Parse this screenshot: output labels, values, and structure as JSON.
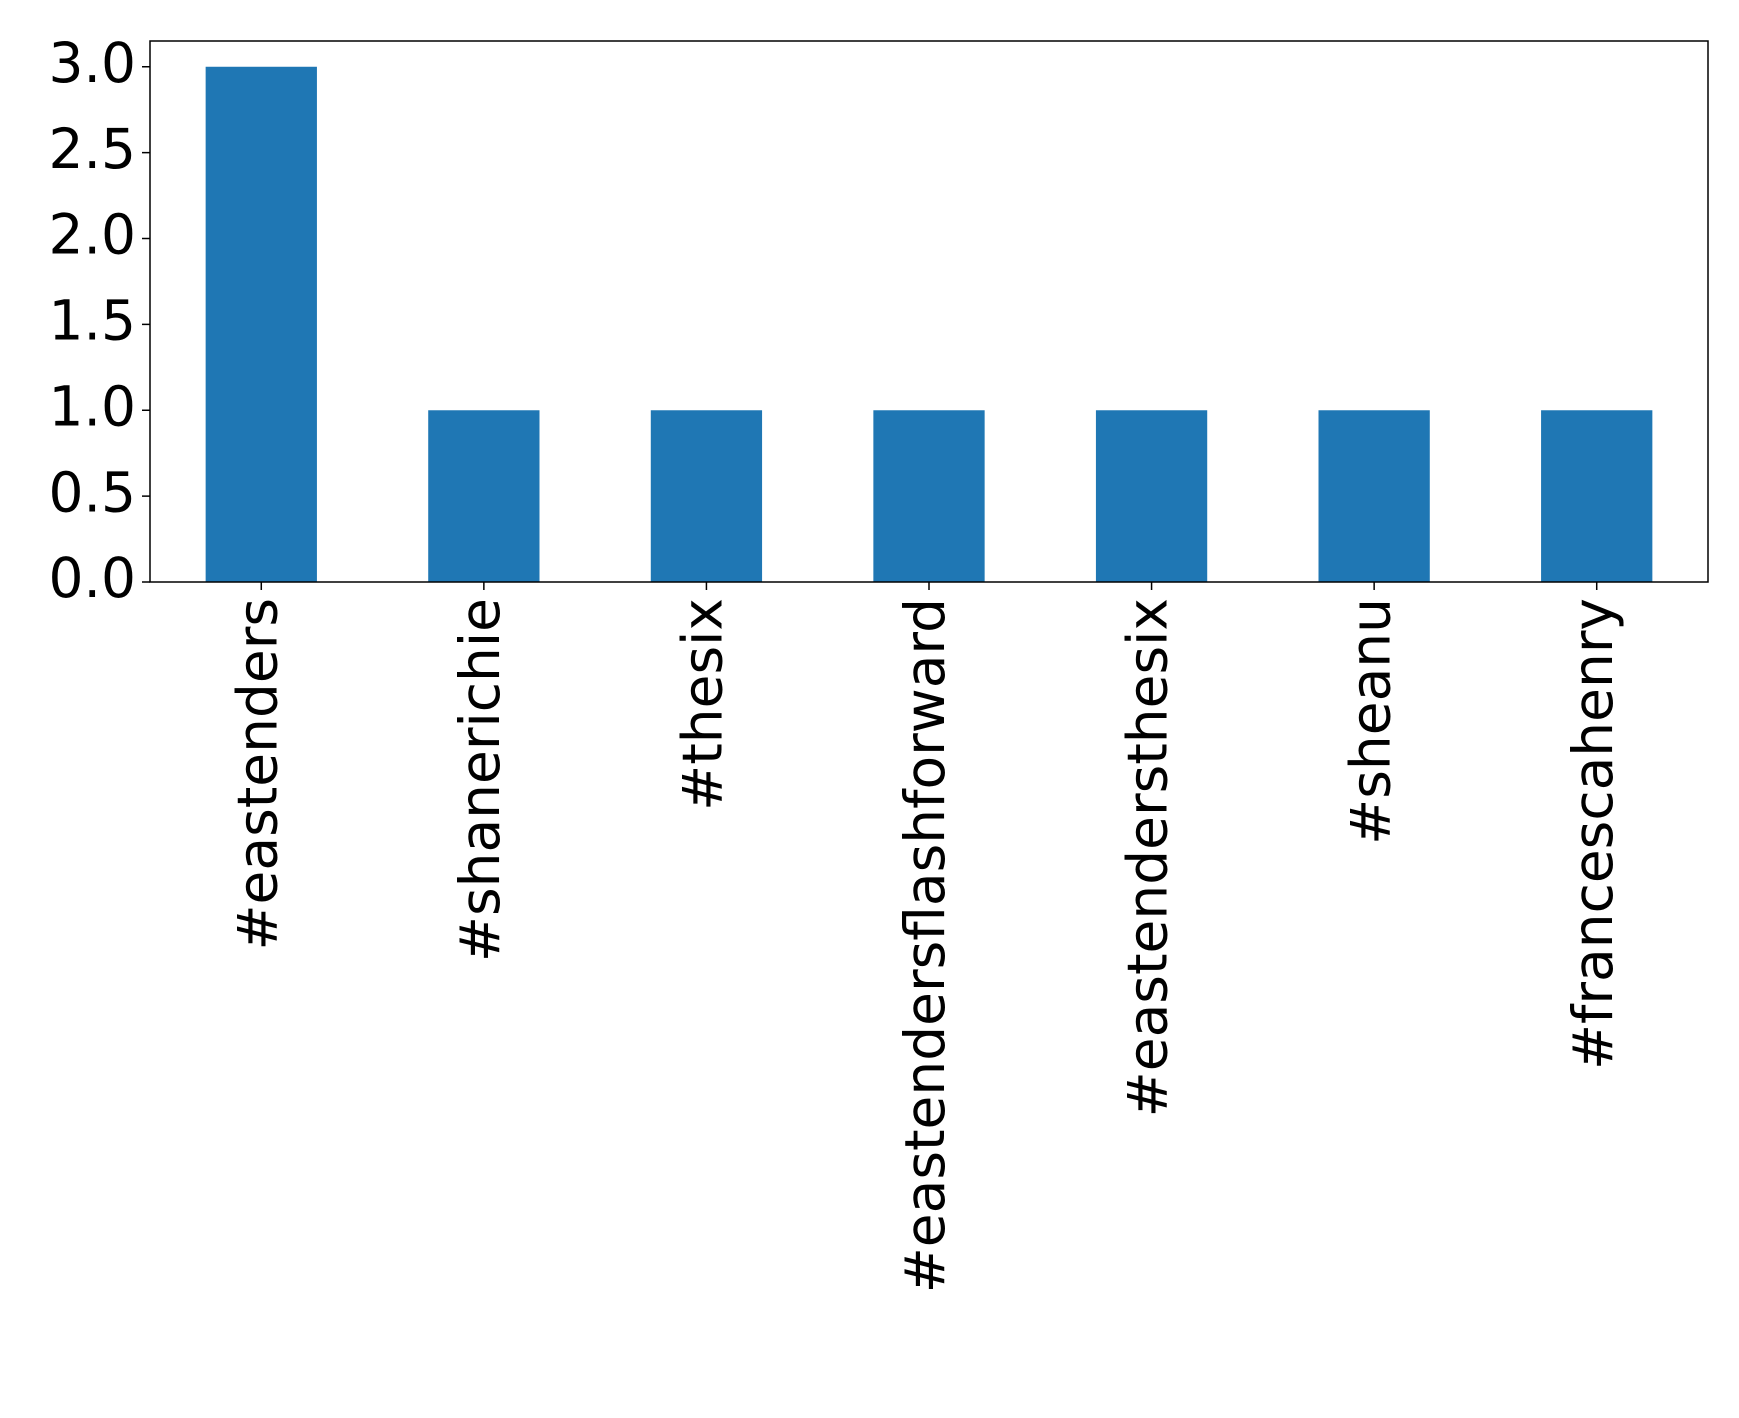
{
  "chart_data": {
    "type": "bar",
    "categories": [
      "#eastenders",
      "#shanerichie",
      "#thesix",
      "#eastendersflashforward",
      "#eastendersthesix",
      "#sheanu",
      "#francescahenry"
    ],
    "values": [
      3,
      1,
      1,
      1,
      1,
      1,
      1
    ],
    "color": "#1f77b4",
    "ylim": [
      0,
      3.15
    ],
    "yticks": [
      {
        "value": 0,
        "label": "0.0"
      },
      0.5,
      {
        "value": 1,
        "label": "1.0"
      },
      1.5,
      {
        "value": 2,
        "label": "2.0"
      },
      2.5,
      {
        "value": 3,
        "label": "3.0"
      }
    ],
    "grid": false
  }
}
